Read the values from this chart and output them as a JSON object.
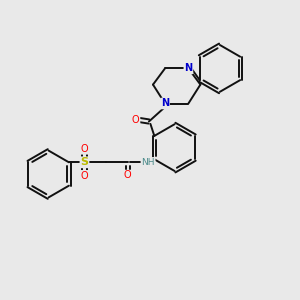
{
  "background_color": "#e9e9e9",
  "bond_color": "#111111",
  "bond_width": 1.4,
  "dbo": 0.055,
  "atom_colors": {
    "O": "#ff0000",
    "N": "#0000cc",
    "S": "#bbbb00",
    "H": "#4a8a8a",
    "C": "#111111"
  },
  "font_size": 7.0,
  "figsize": [
    3.0,
    3.0
  ],
  "dpi": 100
}
